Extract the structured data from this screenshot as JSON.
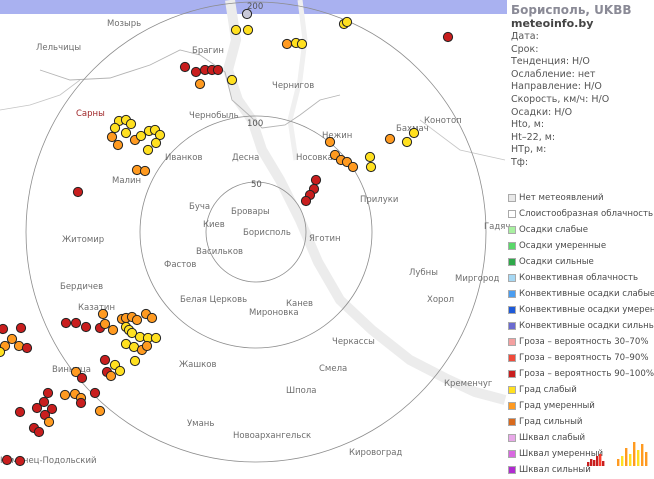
{
  "info": {
    "title": "Борисполь, UKBB",
    "site": "meteoinfo.by",
    "rows": [
      "Дата:",
      "Срок:",
      "Тенденция: Н/О",
      "Ослабление: нет",
      "Направление: Н/О",
      "Скорость, км/ч: Н/О",
      "Осадки: Н/О",
      "Hto, м:",
      "Ht–22, м:",
      "НТр, м:",
      "Тф:"
    ]
  },
  "rings": {
    "r50": "50",
    "r100": "100",
    "r200": "200"
  },
  "cities": {
    "mozyr": "Мозырь",
    "lelchitsy": "Лельчицы",
    "bragin": "Брагин",
    "chernigov": "Чернигов",
    "sarny": "Сарны",
    "chernobyl": "Чернобыль",
    "nezhin": "Нежин",
    "bakhmach": "Бахмач",
    "konotop": "Конотоп",
    "ivankov": "Иванков",
    "desna": "Десна",
    "nosovka": "Носовка",
    "malin": "Малин",
    "priluki": "Прилуки",
    "bucha": "Буча",
    "brovary": "Бровары",
    "kiev": "Киев",
    "borispol": "Борисполь",
    "yagotin": "Яготин",
    "gadyach": "Гадяч",
    "zhitomir": "Житомир",
    "vasilkov": "Васильков",
    "fastov": "Фастов",
    "lubny": "Лубны",
    "mirgorod": "Миргород",
    "berdichev": "Бердичев",
    "belaya_tserkov": "Белая Церковь",
    "kanev": "Канев",
    "khorol": "Хорол",
    "kazatin": "Казатин",
    "mironovka": "Мироновка",
    "cherkassy": "Черкассы",
    "vinnitsa": "Винница",
    "zhashkov": "Жашков",
    "smela": "Смела",
    "kremenchug": "Кременчуг",
    "shpola": "Шпола",
    "uman": "Умань",
    "novoarkhangelsk": "Новоархангельск",
    "kirovograd": "Кировоград",
    "kamenets": "Каменец-Подольский"
  },
  "legend": [
    {
      "label": "Нет метеоявлений",
      "color": "#e8e8e8"
    },
    {
      "label": "Слоистообразная облачность",
      "color": "#ffffff"
    },
    {
      "label": "Осадки слабые",
      "color": "#a8f0a0"
    },
    {
      "label": "Осадки умеренные",
      "color": "#5ad86a"
    },
    {
      "label": "Осадки сильные",
      "color": "#2fa84a"
    },
    {
      "label": "Конвективная облачность",
      "color": "#a6d8f4"
    },
    {
      "label": "Конвективные осадки слабые",
      "color": "#4b9df0"
    },
    {
      "label": "Конвективные осадки умерен.",
      "color": "#1e5ad8"
    },
    {
      "label": "Конвективные осадки сильные",
      "color": "#6a6ad0"
    },
    {
      "label": "Гроза – вероятность 30–70%",
      "color": "#f4a0a0"
    },
    {
      "label": "Гроза – вероятность 70–90%",
      "color": "#f04a3a"
    },
    {
      "label": "Гроза – вероятность 90–100%",
      "color": "#c81e1e"
    },
    {
      "label": "Град слабый",
      "color": "#ffe020"
    },
    {
      "label": "Град умеренный",
      "color": "#ff9a20"
    },
    {
      "label": "Град сильный",
      "color": "#d86a1e"
    },
    {
      "label": "Шквал слабый",
      "color": "#e8a8e8"
    },
    {
      "label": "Шквал умеренный",
      "color": "#d868e0"
    },
    {
      "label": "Шквал сильный",
      "color": "#b02ad0"
    }
  ],
  "echo_levels": {
    "yellow": "#ffe020",
    "orange": "#ff9a20",
    "red": "#c81e1e"
  }
}
